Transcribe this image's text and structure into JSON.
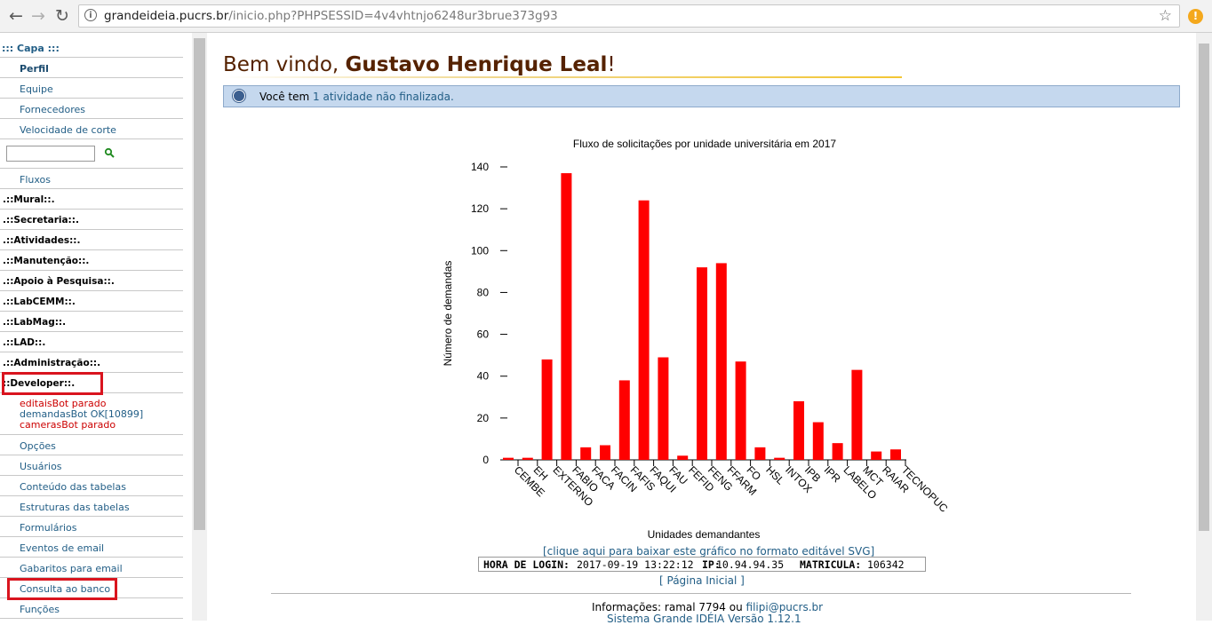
{
  "browser": {
    "url_host": "grandeideia.pucrs.br",
    "url_path": "/inicio.php?PHPSESSID=4v4vhtnjo6248ur3brue373g93"
  },
  "sidebar": {
    "capa": "::: Capa :::",
    "items_top": [
      "Perfil",
      "Equipe",
      "Fornecedores",
      "Velocidade de corte"
    ],
    "fluxos": "Fluxos",
    "heads": [
      ".::Mural::.",
      ".::Secretaria::.",
      ".::Atividades::.",
      ".::Manutenção::.",
      ".::Apoio à Pesquisa::.",
      ".::LabCEMM::.",
      ".::LabMag::.",
      ".::LAD::.",
      ".::Administração::.",
      "::Developer::."
    ],
    "bots": [
      "editaisBot parado",
      "demandasBot OK[10899]",
      "camerasBot parado"
    ],
    "items_dev": [
      "Opções",
      "Usuários",
      "Conteúdo das tabelas",
      "Estruturas das tabelas",
      "Formulários",
      "Eventos de email",
      "Gabaritos para email",
      "Consulta ao banco",
      "Funções"
    ]
  },
  "main": {
    "welcome_prefix": "Bem vindo, ",
    "welcome_name": "Gustavo Henrique Leal",
    "welcome_suffix": "!",
    "notice_prefix": "Você tem ",
    "notice_link": "1 atividade não finalizada."
  },
  "chart_data": {
    "type": "bar",
    "title": "Fluxo de solicitações por unidade universitária em 2017",
    "xlabel": "Unidades demandantes",
    "ylabel": "Número de demandas",
    "ylim": [
      0,
      140
    ],
    "yticks": [
      0,
      20,
      40,
      60,
      80,
      100,
      120,
      140
    ],
    "categories": [
      "CEMBE",
      "EH",
      "EXTERNO",
      "FABIO",
      "FACA",
      "FACIN",
      "FAFIS",
      "FAQUI",
      "FAU",
      "FEFID",
      "FENG",
      "FFARM",
      "FO",
      "HSL",
      "INTOX",
      "IPB",
      "IPR",
      "LABELO",
      "MCT",
      "RAIAR",
      "TECNOPUC"
    ],
    "values": [
      1,
      1,
      48,
      137,
      6,
      7,
      38,
      124,
      49,
      2,
      92,
      94,
      47,
      6,
      1,
      28,
      18,
      8,
      43,
      4,
      5
    ],
    "color": "#ff0000",
    "grid": false
  },
  "footer": {
    "svg_link": "[clique aqui para baixar este gráfico no formato editável SVG]",
    "login_label": "HORA DE LOGIN:",
    "login_value": "2017-09-19 13:22:12",
    "ip_label": "IP:",
    "ip_value": " 10.94.94.35",
    "mat_label": "MATRICULA:",
    "mat_value": "106342",
    "home_link": "[ Página Inicial ]",
    "info_prefix": "Informações: ramal 7794 ou ",
    "info_email": "filipi@pucrs.br",
    "version": "Sistema Grande IDÉIA Versão 1.12.1"
  },
  "colors": {
    "link": "#225e86",
    "bar": "#ff0000",
    "highlight_box": "#d9141e",
    "notice_bg": "#c5d8ee"
  }
}
